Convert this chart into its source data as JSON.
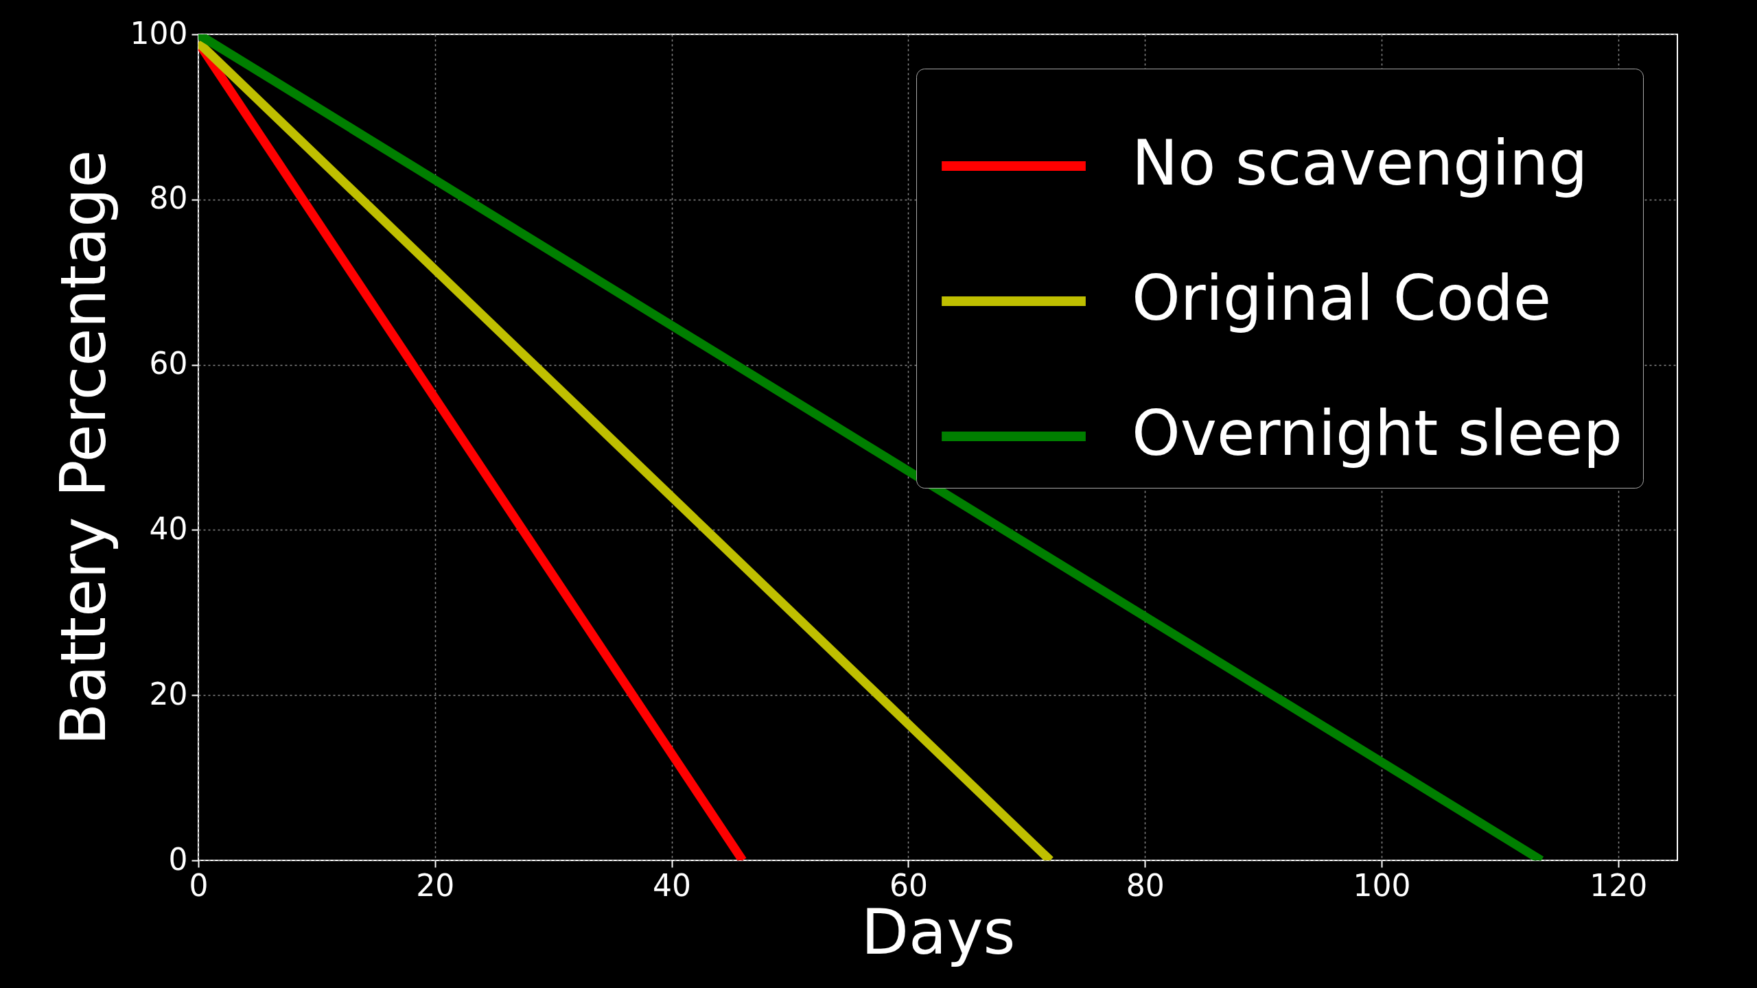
{
  "chart_data": {
    "type": "line",
    "xlabel": "Days",
    "ylabel": "Battery Percentage",
    "xlim": [
      0,
      125
    ],
    "ylim": [
      0,
      100
    ],
    "xticks": [
      0,
      20,
      40,
      60,
      80,
      100,
      120
    ],
    "yticks": [
      0,
      20,
      40,
      60,
      80,
      100
    ],
    "grid": true,
    "legend": "top right",
    "line_style": "solid",
    "series": [
      {
        "name": "No scavenging",
        "color": "#ff0000",
        "x": [
          0,
          46
        ],
        "values": [
          99,
          0
        ]
      },
      {
        "name": "Original Code",
        "color": "#bfbf00",
        "x": [
          0,
          72
        ],
        "values": [
          99,
          0
        ]
      },
      {
        "name": "Overnight sleep",
        "color": "#007f00",
        "x": [
          0,
          113.5
        ],
        "values": [
          100,
          0
        ]
      }
    ]
  }
}
